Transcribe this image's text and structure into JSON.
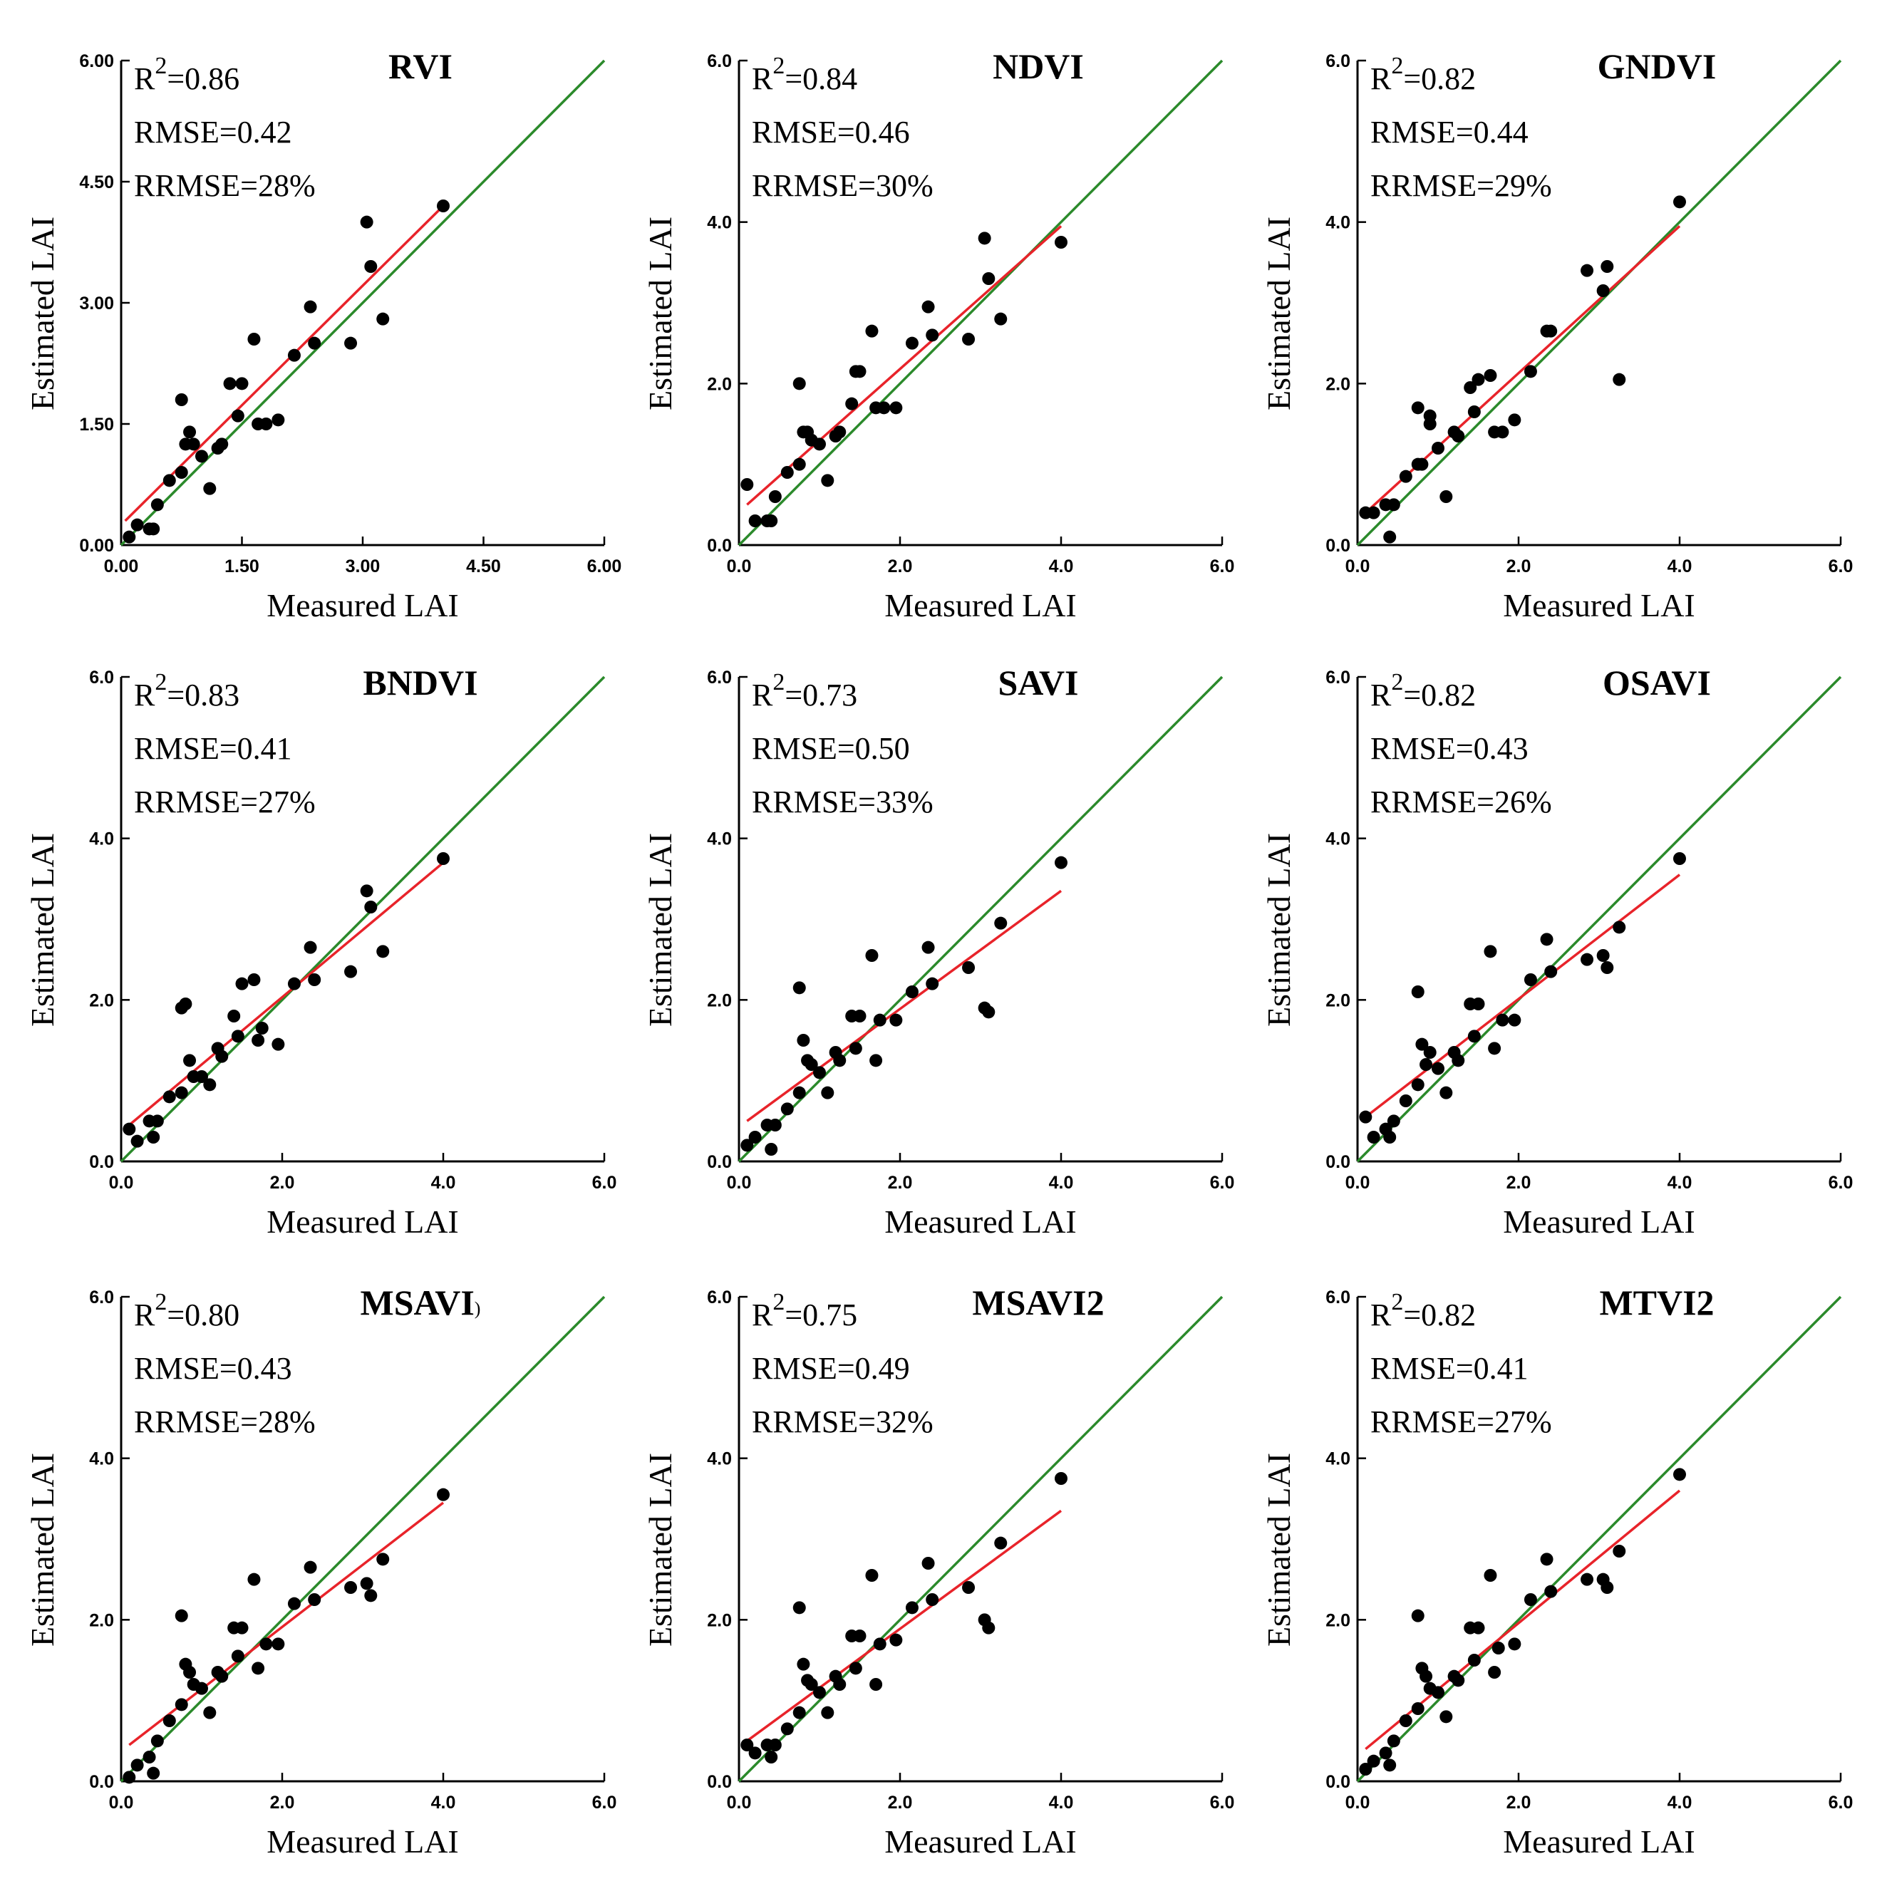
{
  "colors": {
    "identity_line": "#2b8a2b",
    "fit_line": "#e8232a",
    "points": "#000000",
    "axis": "#000000"
  },
  "chart_data": [
    {
      "type": "scatter",
      "title": "RVI",
      "xlabel": "Measured LAI",
      "ylabel": "Estimated LAI",
      "xlim": [
        0,
        6
      ],
      "ylim": [
        0,
        6
      ],
      "xticks": [
        "0.00",
        "1.50",
        "3.00",
        "4.50",
        "6.00"
      ],
      "yticks": [
        "0.00",
        "1.50",
        "3.00",
        "4.50",
        "6.00"
      ],
      "tick_values": [
        0,
        1.5,
        3,
        4.5,
        6
      ],
      "stats": {
        "r2_prefix": "R",
        "r2_exp": "2",
        "r2_value": "=0.86",
        "rmse": "RMSE=0.42",
        "rrmse": "RRMSE=28%"
      },
      "fit_line": [
        [
          0.05,
          0.3
        ],
        [
          4.0,
          4.2
        ]
      ],
      "x": [
        0.1,
        0.2,
        0.35,
        0.4,
        0.45,
        0.6,
        0.75,
        0.75,
        0.8,
        0.85,
        0.9,
        1.0,
        1.1,
        1.2,
        1.25,
        1.35,
        1.45,
        1.5,
        1.65,
        1.7,
        1.8,
        1.95,
        2.15,
        2.35,
        2.4,
        2.85,
        3.05,
        3.1,
        3.25,
        4.0
      ],
      "y": [
        0.1,
        0.25,
        0.2,
        0.2,
        0.5,
        0.8,
        1.8,
        0.9,
        1.25,
        1.4,
        1.25,
        1.1,
        0.7,
        1.2,
        1.25,
        2.0,
        1.6,
        2.0,
        2.55,
        1.5,
        1.5,
        1.55,
        2.35,
        2.95,
        2.5,
        2.5,
        4.0,
        3.45,
        2.8,
        4.2
      ]
    },
    {
      "type": "scatter",
      "title": "NDVI",
      "xlabel": "Measured LAI",
      "ylabel": "Estimated LAI",
      "xlim": [
        0,
        6
      ],
      "ylim": [
        0,
        6
      ],
      "xticks": [
        "0.0",
        "2.0",
        "4.0",
        "6.0"
      ],
      "yticks": [
        "0.0",
        "2.0",
        "4.0",
        "6.0"
      ],
      "tick_values": [
        0,
        2,
        4,
        6
      ],
      "stats": {
        "r2_prefix": "R",
        "r2_exp": "2",
        "r2_value": "=0.84",
        "rmse": "RMSE=0.46",
        "rrmse": "RRMSE=30%"
      },
      "fit_line": [
        [
          0.1,
          0.5
        ],
        [
          4.0,
          3.95
        ]
      ],
      "x": [
        0.1,
        0.2,
        0.35,
        0.4,
        0.45,
        0.6,
        0.75,
        0.75,
        0.8,
        0.85,
        0.9,
        1.0,
        1.1,
        1.2,
        1.25,
        1.4,
        1.45,
        1.5,
        1.65,
        1.7,
        1.8,
        1.95,
        2.15,
        2.35,
        2.4,
        2.85,
        3.05,
        3.1,
        3.25,
        4.0
      ],
      "y": [
        0.75,
        0.3,
        0.3,
        0.3,
        0.6,
        0.9,
        2.0,
        1.0,
        1.4,
        1.4,
        1.3,
        1.25,
        0.8,
        1.35,
        1.4,
        1.75,
        2.15,
        2.15,
        2.65,
        1.7,
        1.7,
        1.7,
        2.5,
        2.95,
        2.6,
        2.55,
        3.8,
        3.3,
        2.8,
        3.75
      ]
    },
    {
      "type": "scatter",
      "title": "GNDVI",
      "xlabel": "Measured LAI",
      "ylabel": "Estimated LAI",
      "xlim": [
        0,
        6
      ],
      "ylim": [
        0,
        6
      ],
      "xticks": [
        "0.0",
        "2.0",
        "4.0",
        "6.0"
      ],
      "yticks": [
        "0.0",
        "2.0",
        "4.0",
        "6.0"
      ],
      "tick_values": [
        0,
        2,
        4,
        6
      ],
      "stats": {
        "r2_prefix": "R",
        "r2_exp": "2",
        "r2_value": "=0.82",
        "rmse": "RMSE=0.44",
        "rrmse": "RRMSE=29%"
      },
      "fit_line": [
        [
          0.1,
          0.4
        ],
        [
          4.0,
          3.95
        ]
      ],
      "x": [
        0.1,
        0.2,
        0.35,
        0.4,
        0.45,
        0.6,
        0.75,
        0.75,
        0.8,
        0.9,
        0.9,
        1.0,
        1.1,
        1.2,
        1.25,
        1.4,
        1.45,
        1.5,
        1.65,
        1.7,
        1.8,
        1.95,
        2.15,
        2.35,
        2.4,
        2.85,
        3.05,
        3.1,
        3.25,
        4.0
      ],
      "y": [
        0.4,
        0.4,
        0.5,
        0.1,
        0.5,
        0.85,
        1.7,
        1.0,
        1.0,
        1.6,
        1.5,
        1.2,
        0.6,
        1.4,
        1.35,
        1.95,
        1.65,
        2.05,
        2.1,
        1.4,
        1.4,
        1.55,
        2.15,
        2.65,
        2.65,
        3.4,
        3.15,
        3.45,
        2.05,
        4.25
      ]
    },
    {
      "type": "scatter",
      "title": "BNDVI",
      "xlabel": "Measured LAI",
      "ylabel": "Estimated LAI",
      "xlim": [
        0,
        6
      ],
      "ylim": [
        0,
        6
      ],
      "xticks": [
        "0.0",
        "2.0",
        "4.0",
        "6.0"
      ],
      "yticks": [
        "0.0",
        "2.0",
        "4.0",
        "6.0"
      ],
      "tick_values": [
        0,
        2,
        4,
        6
      ],
      "stats": {
        "r2_prefix": "R",
        "r2_exp": "2",
        "r2_value": "=0.83",
        "rmse": "RMSE=0.41",
        "rrmse": "RRMSE=27%"
      },
      "fit_line": [
        [
          0.1,
          0.45
        ],
        [
          4.0,
          3.7
        ]
      ],
      "x": [
        0.1,
        0.2,
        0.35,
        0.4,
        0.45,
        0.6,
        0.75,
        0.75,
        0.8,
        0.85,
        0.9,
        1.0,
        1.1,
        1.2,
        1.25,
        1.4,
        1.45,
        1.5,
        1.65,
        1.7,
        1.75,
        1.95,
        2.15,
        2.35,
        2.4,
        2.85,
        3.05,
        3.1,
        3.25,
        4.0
      ],
      "y": [
        0.4,
        0.25,
        0.5,
        0.3,
        0.5,
        0.8,
        1.9,
        0.85,
        1.95,
        1.25,
        1.05,
        1.05,
        0.95,
        1.4,
        1.3,
        1.8,
        1.55,
        2.2,
        2.25,
        1.5,
        1.65,
        1.45,
        2.2,
        2.65,
        2.25,
        2.35,
        3.35,
        3.15,
        2.6,
        3.75
      ]
    },
    {
      "type": "scatter",
      "title": "SAVI",
      "xlabel": "Measured LAI",
      "ylabel": "Estimated LAI",
      "xlim": [
        0,
        6
      ],
      "ylim": [
        0,
        6
      ],
      "xticks": [
        "0.0",
        "2.0",
        "4.0",
        "6.0"
      ],
      "yticks": [
        "0.0",
        "2.0",
        "4.0",
        "6.0"
      ],
      "tick_values": [
        0,
        2,
        4,
        6
      ],
      "stats": {
        "r2_prefix": "R",
        "r2_exp": "2",
        "r2_value": "=0.73",
        "rmse": "RMSE=0.50",
        "rrmse": "RRMSE=33%"
      },
      "fit_line": [
        [
          0.1,
          0.5
        ],
        [
          4.0,
          3.35
        ]
      ],
      "x": [
        0.1,
        0.2,
        0.35,
        0.4,
        0.45,
        0.6,
        0.75,
        0.75,
        0.8,
        0.85,
        0.9,
        1.0,
        1.1,
        1.2,
        1.25,
        1.4,
        1.45,
        1.5,
        1.65,
        1.7,
        1.75,
        1.95,
        2.15,
        2.35,
        2.4,
        2.85,
        3.05,
        3.1,
        3.25,
        4.0
      ],
      "y": [
        0.2,
        0.3,
        0.45,
        0.15,
        0.45,
        0.65,
        2.15,
        0.85,
        1.5,
        1.25,
        1.2,
        1.1,
        0.85,
        1.35,
        1.25,
        1.8,
        1.4,
        1.8,
        2.55,
        1.25,
        1.75,
        1.75,
        2.1,
        2.65,
        2.2,
        2.4,
        1.9,
        1.85,
        2.95,
        3.7
      ]
    },
    {
      "type": "scatter",
      "title": "OSAVI",
      "xlabel": "Measured LAI",
      "ylabel": "Estimated LAI",
      "xlim": [
        0,
        6
      ],
      "ylim": [
        0,
        6
      ],
      "xticks": [
        "0.0",
        "2.0",
        "4.0",
        "6.0"
      ],
      "yticks": [
        "0.0",
        "2.0",
        "4.0",
        "6.0"
      ],
      "tick_values": [
        0,
        2,
        4,
        6
      ],
      "stats": {
        "r2_prefix": "R",
        "r2_exp": "2",
        "r2_value": "=0.82",
        "rmse": "RMSE=0.43",
        "rrmse": "RRMSE=26%"
      },
      "fit_line": [
        [
          0.1,
          0.55
        ],
        [
          4.0,
          3.55
        ]
      ],
      "x": [
        0.1,
        0.2,
        0.35,
        0.4,
        0.45,
        0.6,
        0.75,
        0.75,
        0.8,
        0.85,
        0.9,
        1.0,
        1.1,
        1.2,
        1.25,
        1.4,
        1.45,
        1.5,
        1.65,
        1.7,
        1.8,
        1.95,
        2.15,
        2.35,
        2.4,
        2.85,
        3.05,
        3.1,
        3.25,
        4.0
      ],
      "y": [
        0.55,
        0.3,
        0.4,
        0.3,
        0.5,
        0.75,
        2.1,
        0.95,
        1.45,
        1.2,
        1.35,
        1.15,
        0.85,
        1.35,
        1.25,
        1.95,
        1.55,
        1.95,
        2.6,
        1.4,
        1.75,
        1.75,
        2.25,
        2.75,
        2.35,
        2.5,
        2.55,
        2.4,
        2.9,
        3.75
      ]
    },
    {
      "type": "scatter",
      "title": "MSAVI",
      "title_mark": ")",
      "xlabel": "Measured LAI",
      "ylabel": "Estimated LAI",
      "xlim": [
        0,
        6
      ],
      "ylim": [
        0,
        6
      ],
      "xticks": [
        "0.0",
        "2.0",
        "4.0",
        "6.0"
      ],
      "yticks": [
        "0.0",
        "2.0",
        "4.0",
        "6.0"
      ],
      "tick_values": [
        0,
        2,
        4,
        6
      ],
      "stats": {
        "r2_prefix": "R",
        "r2_exp": "2",
        "r2_value": "=0.80",
        "rmse": "RMSE=0.43",
        "rrmse": "RRMSE=28%"
      },
      "fit_line": [
        [
          0.1,
          0.45
        ],
        [
          4.0,
          3.45
        ]
      ],
      "x": [
        0.1,
        0.2,
        0.35,
        0.4,
        0.45,
        0.6,
        0.75,
        0.75,
        0.8,
        0.85,
        0.9,
        1.0,
        1.1,
        1.2,
        1.25,
        1.4,
        1.45,
        1.5,
        1.65,
        1.7,
        1.8,
        1.95,
        2.15,
        2.35,
        2.4,
        2.85,
        3.05,
        3.1,
        3.25,
        4.0
      ],
      "y": [
        0.05,
        0.2,
        0.3,
        0.1,
        0.5,
        0.75,
        2.05,
        0.95,
        1.45,
        1.35,
        1.2,
        1.15,
        0.85,
        1.35,
        1.3,
        1.9,
        1.55,
        1.9,
        2.5,
        1.4,
        1.7,
        1.7,
        2.2,
        2.65,
        2.25,
        2.4,
        2.45,
        2.3,
        2.75,
        3.55
      ]
    },
    {
      "type": "scatter",
      "title": "MSAVI2",
      "xlabel": "Measured LAI",
      "ylabel": "Estimated LAI",
      "xlim": [
        0,
        6
      ],
      "ylim": [
        0,
        6
      ],
      "xticks": [
        "0.0",
        "2.0",
        "4.0",
        "6.0"
      ],
      "yticks": [
        "0.0",
        "2.0",
        "4.0",
        "6.0"
      ],
      "tick_values": [
        0,
        2,
        4,
        6
      ],
      "stats": {
        "r2_prefix": "R",
        "r2_exp": "2",
        "r2_value": "=0.75",
        "rmse": "RMSE=0.49",
        "rrmse": "RRMSE=32%"
      },
      "fit_line": [
        [
          0.1,
          0.5
        ],
        [
          4.0,
          3.35
        ]
      ],
      "x": [
        0.1,
        0.2,
        0.35,
        0.4,
        0.45,
        0.6,
        0.75,
        0.75,
        0.8,
        0.85,
        0.9,
        1.0,
        1.1,
        1.2,
        1.25,
        1.4,
        1.45,
        1.5,
        1.65,
        1.7,
        1.75,
        1.95,
        2.15,
        2.35,
        2.4,
        2.85,
        3.05,
        3.1,
        3.25,
        4.0
      ],
      "y": [
        0.45,
        0.35,
        0.45,
        0.3,
        0.45,
        0.65,
        2.15,
        0.85,
        1.45,
        1.25,
        1.2,
        1.1,
        0.85,
        1.3,
        1.2,
        1.8,
        1.4,
        1.8,
        2.55,
        1.2,
        1.7,
        1.75,
        2.15,
        2.7,
        2.25,
        2.4,
        2.0,
        1.9,
        2.95,
        3.75
      ]
    },
    {
      "type": "scatter",
      "title": "MTVI2",
      "xlabel": "Measured LAI",
      "ylabel": "Estimated LAI",
      "xlim": [
        0,
        6
      ],
      "ylim": [
        0,
        6
      ],
      "xticks": [
        "0.0",
        "2.0",
        "4.0",
        "6.0"
      ],
      "yticks": [
        "0.0",
        "2.0",
        "4.0",
        "6.0"
      ],
      "tick_values": [
        0,
        2,
        4,
        6
      ],
      "stats": {
        "r2_prefix": "R",
        "r2_exp": "2",
        "r2_value": "=0.82",
        "rmse": "RMSE=0.41",
        "rrmse": "RRMSE=27%"
      },
      "fit_line": [
        [
          0.1,
          0.4
        ],
        [
          4.0,
          3.6
        ]
      ],
      "x": [
        0.1,
        0.2,
        0.35,
        0.4,
        0.45,
        0.6,
        0.75,
        0.75,
        0.8,
        0.85,
        0.9,
        1.0,
        1.1,
        1.2,
        1.25,
        1.4,
        1.45,
        1.5,
        1.65,
        1.7,
        1.75,
        1.95,
        2.15,
        2.35,
        2.4,
        2.85,
        3.05,
        3.1,
        3.25,
        4.0
      ],
      "y": [
        0.15,
        0.25,
        0.35,
        0.2,
        0.5,
        0.75,
        2.05,
        0.9,
        1.4,
        1.3,
        1.15,
        1.1,
        0.8,
        1.3,
        1.25,
        1.9,
        1.5,
        1.9,
        2.55,
        1.35,
        1.65,
        1.7,
        2.25,
        2.75,
        2.35,
        2.5,
        2.5,
        2.4,
        2.85,
        3.8
      ]
    }
  ]
}
